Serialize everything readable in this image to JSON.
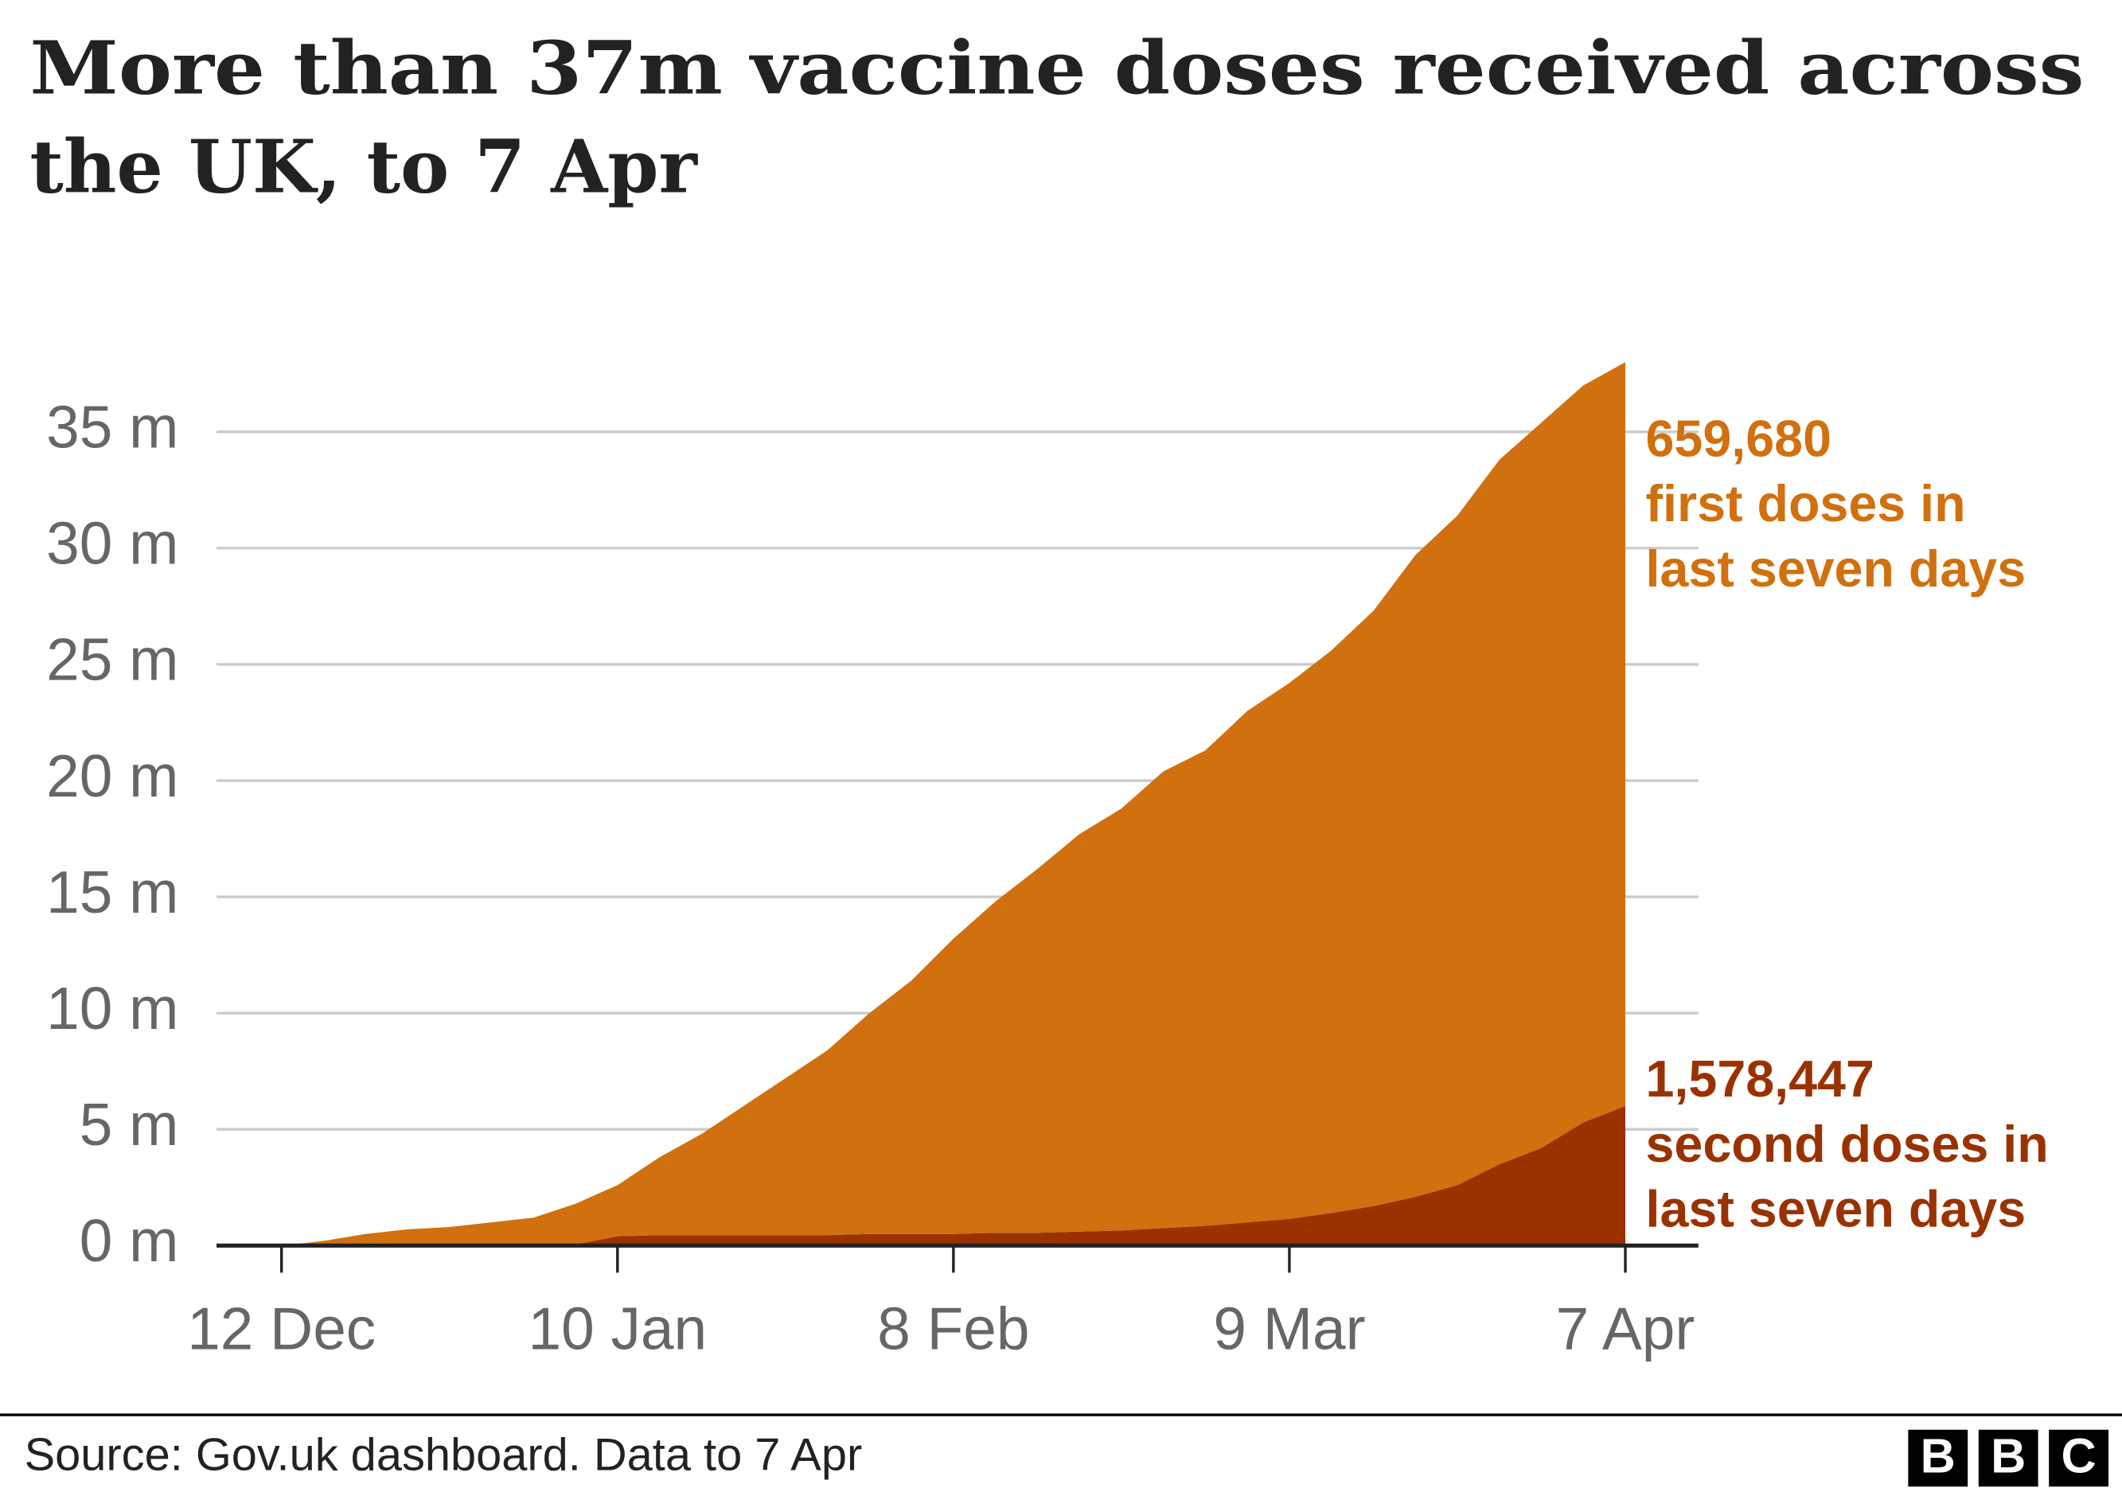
{
  "chart_data": {
    "type": "stacked_area",
    "title": [
      "More than 37m vaccine doses received across",
      "the UK, to 7 Apr"
    ],
    "categories": [
      null,
      "12 Dec",
      null,
      null,
      null,
      null,
      null,
      null,
      null,
      "10 Jan",
      null,
      null,
      null,
      null,
      null,
      null,
      null,
      "8 Feb",
      null,
      null,
      null,
      null,
      null,
      null,
      null,
      "9 Mar",
      null,
      null,
      null,
      null,
      null,
      null,
      null,
      "7 Apr"
    ],
    "series": [
      {
        "color": "#9a3200",
        "values": [
          0,
          0,
          0,
          0,
          0,
          0,
          0,
          0,
          0.05,
          0.4,
          0.45,
          0.45,
          0.45,
          0.45,
          0.45,
          0.5,
          0.5,
          0.5,
          0.55,
          0.55,
          0.6,
          0.65,
          0.75,
          0.85,
          1.0,
          1.15,
          1.4,
          1.7,
          2.1,
          2.6,
          3.5,
          4.2,
          5.3,
          6.0
        ]
      },
      {
        "color": "#d1700e",
        "values": [
          0,
          0,
          0.2,
          0.5,
          0.7,
          0.8,
          1.0,
          1.2,
          1.75,
          2.2,
          3.35,
          4.35,
          5.55,
          6.75,
          7.95,
          9.5,
          10.9,
          12.7,
          14.25,
          15.65,
          17.1,
          18.15,
          19.65,
          20.45,
          22.0,
          23.05,
          24.2,
          25.6,
          27.6,
          28.8,
          30.3,
          31.2,
          31.7,
          32.0
        ]
      }
    ],
    "ylim": [
      0,
      40
    ],
    "yticks": [
      {
        "value": 0,
        "label": "0 m"
      },
      {
        "value": 5,
        "label": "5 m"
      },
      {
        "value": 10,
        "label": "10 m"
      },
      {
        "value": 15,
        "label": "15 m"
      },
      {
        "value": 20,
        "label": "20 m"
      },
      {
        "value": 25,
        "label": "25 m"
      },
      {
        "value": 30,
        "label": "30 m"
      },
      {
        "value": 35,
        "label": "35 m"
      }
    ],
    "grid": true,
    "annotations": [
      {
        "lines": [
          "659,680",
          "first doses in",
          "last seven days"
        ],
        "color": "#d1700e"
      },
      {
        "lines": [
          "1,578,447",
          "second doses in",
          "last seven days"
        ],
        "color": "#9a3200"
      }
    ],
    "source": "Source: Gov.uk dashboard. Data to 7 Apr",
    "logo": [
      "B",
      "B",
      "C"
    ]
  }
}
